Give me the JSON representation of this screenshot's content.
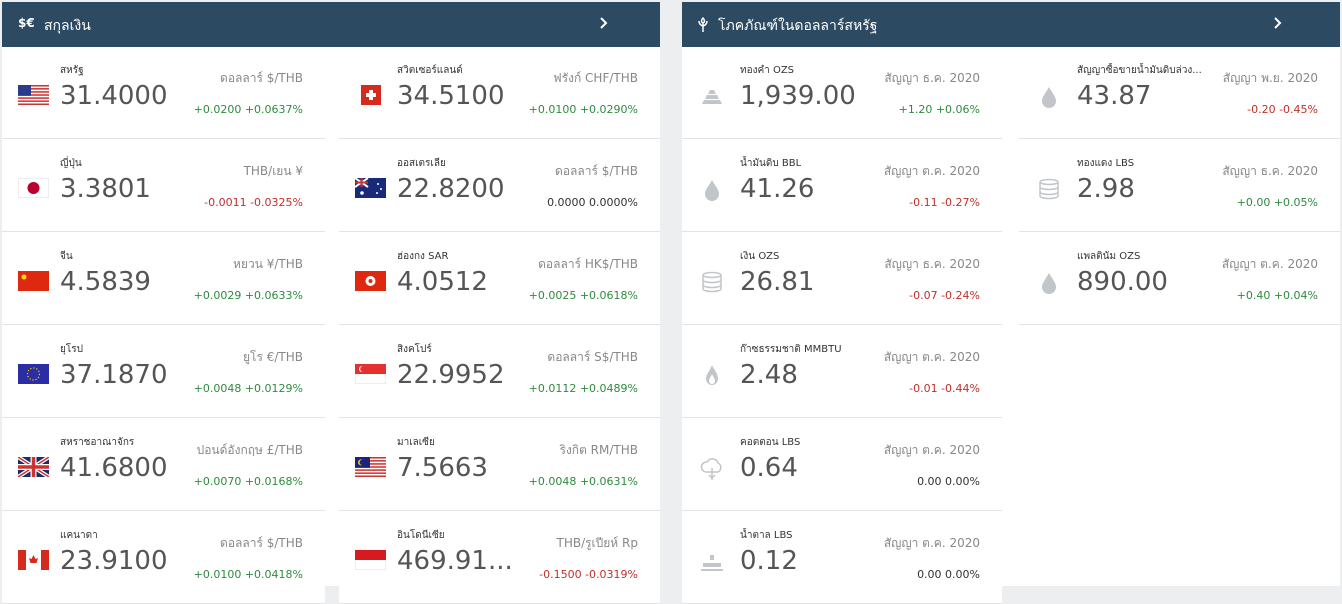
{
  "currencies": {
    "icon": "$€",
    "title": "สกุลเงิน",
    "items": [
      {
        "name": "สหรัฐ",
        "unit": "ดอลลาร์ $/THB",
        "value": "31.4000",
        "change": "+0.0200 +0.0637%"
      },
      {
        "name": "สวิตเซอร์แลนด์",
        "unit": "ฟรังก์ CHF/THB",
        "value": "34.5100",
        "change": "+0.0100 +0.0290%"
      },
      {
        "name": "ญี่ปุ่น",
        "unit": "THB/เยน ¥",
        "value": "3.3801",
        "change": "-0.0011 -0.0325%"
      },
      {
        "name": "ออสเตรเลีย",
        "unit": "ดอลลาร์ $/THB",
        "value": "22.8200",
        "change": "0.0000 0.0000%"
      },
      {
        "name": "จีน",
        "unit": "หยวน ¥/THB",
        "value": "4.5839",
        "change": "+0.0029 +0.0633%"
      },
      {
        "name": "ฮ่องกง SAR",
        "unit": "ดอลลาร์ HK$/THB",
        "value": "4.0512",
        "change": "+0.0025 +0.0618%"
      },
      {
        "name": "ยุโรป",
        "unit": "ยูโร €/THB",
        "value": "37.1870",
        "change": "+0.0048 +0.0129%"
      },
      {
        "name": "สิงคโปร์",
        "unit": "ดอลลาร์ S$/THB",
        "value": "22.9952",
        "change": "+0.0112 +0.0489%"
      },
      {
        "name": "สหราชอาณาจักร",
        "unit": "ปอนด์อังกฤษ £/THB",
        "value": "41.6800",
        "change": "+0.0070 +0.0168%"
      },
      {
        "name": "มาเลเซีย",
        "unit": "ริงกิต RM/THB",
        "value": "7.5663",
        "change": "+0.0048 +0.0631%"
      },
      {
        "name": "แคนาดา",
        "unit": "ดอลลาร์ $/THB",
        "value": "23.9100",
        "change": "+0.0100 +0.0418%"
      },
      {
        "name": "อินโดนีเซีย",
        "unit": "THB/รูเปียห์ Rp",
        "value": "469.91...",
        "change": "-0.1500 -0.0319%"
      }
    ]
  },
  "commodities": {
    "title": "โภคภัณฑ์ในดอลลาร์สหรัฐ",
    "items": [
      {
        "name": "ทองคำ OZS",
        "contract": "สัญญา ธ.ค. 2020",
        "value": "1,939.00",
        "change": "+1.20 +0.06%"
      },
      {
        "name": "สัญญาซื้อขายน้ำมันดิบล่วง...",
        "contract": "สัญญา พ.ย. 2020",
        "value": "43.87",
        "change": "-0.20 -0.45%"
      },
      {
        "name": "น้ำมันดิบ BBL",
        "contract": "สัญญา ต.ค. 2020",
        "value": "41.26",
        "change": "-0.11 -0.27%"
      },
      {
        "name": "ทองแดง LBS",
        "contract": "สัญญา ธ.ค. 2020",
        "value": "2.98",
        "change": "+0.00 +0.05%"
      },
      {
        "name": "เงิน OZS",
        "contract": "สัญญา ธ.ค. 2020",
        "value": "26.81",
        "change": "-0.07 -0.24%"
      },
      {
        "name": "แพลตินัม OZS",
        "contract": "สัญญา ต.ค. 2020",
        "value": "890.00",
        "change": "+0.40 +0.04%"
      },
      {
        "name": "ก๊าซธรรมชาติ MMBTU",
        "contract": "สัญญา ต.ค. 2020",
        "value": "2.48",
        "change": "-0.01 -0.44%"
      },
      {
        "name": "คอตตอน LBS",
        "contract": "สัญญา ต.ค. 2020",
        "value": "0.64",
        "change": "0.00 0.00%"
      },
      {
        "name": "น้ำตาล LBS",
        "contract": "สัญญา ต.ค. 2020",
        "value": "0.12",
        "change": "0.00 0.00%"
      }
    ]
  }
}
